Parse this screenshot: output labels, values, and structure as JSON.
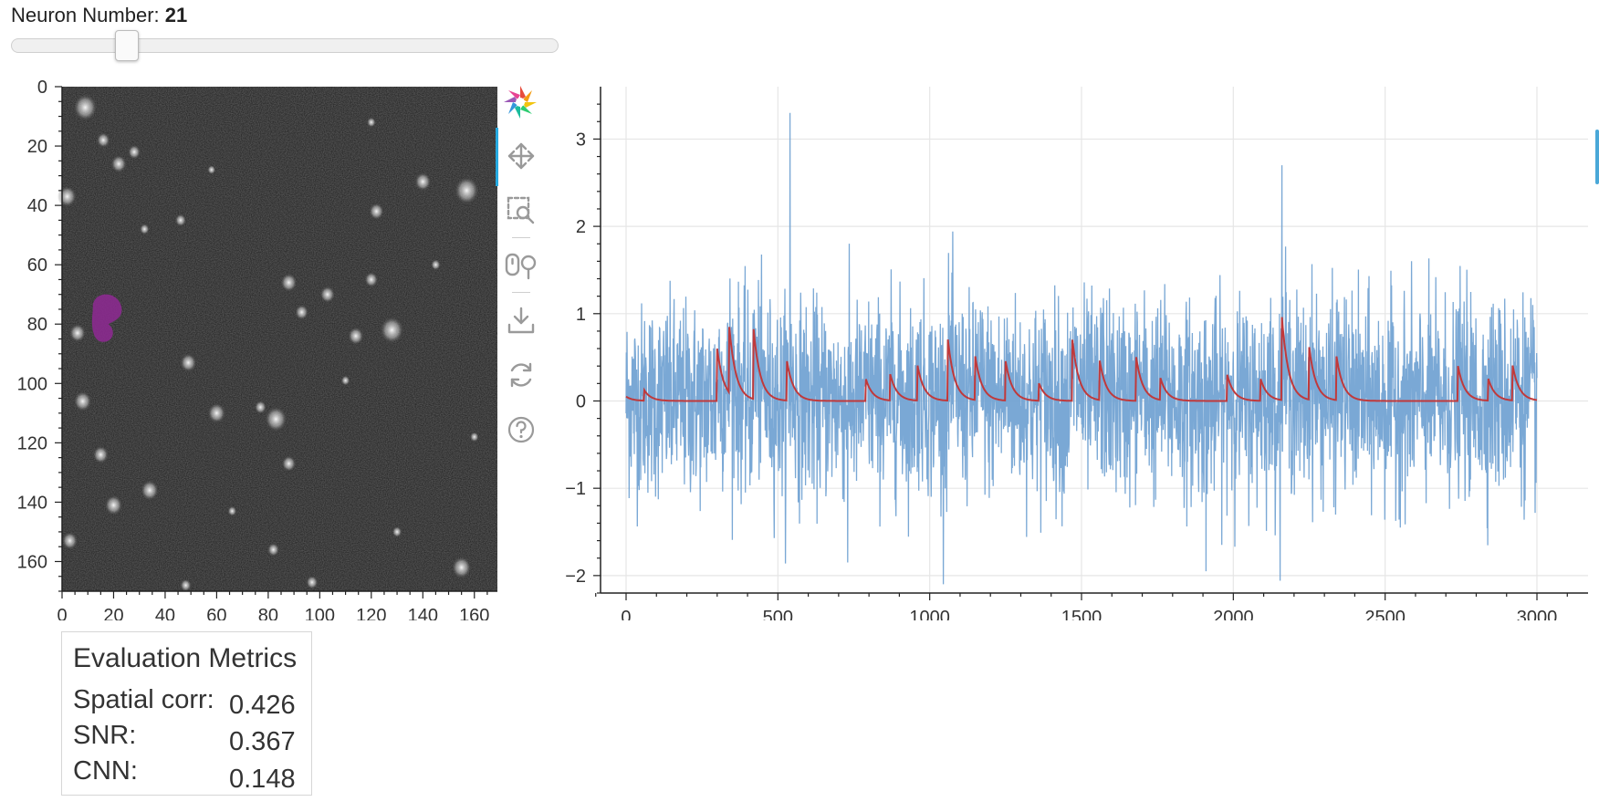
{
  "slider": {
    "label": "Neuron Number:",
    "value": "21",
    "min": 0,
    "max": 100,
    "position_fraction": 0.21
  },
  "image_panel": {
    "x_ticks": [
      "0",
      "20",
      "40",
      "60",
      "80",
      "100",
      "120",
      "140",
      "160"
    ],
    "y_ticks": [
      "0",
      "20",
      "40",
      "60",
      "80",
      "100",
      "120",
      "140",
      "160"
    ],
    "x_range": [
      0,
      170
    ],
    "y_range": [
      0,
      170
    ],
    "highlight_color": "#8b2a8f",
    "highlight_center": [
      17,
      78
    ]
  },
  "toolbar": {
    "items": [
      {
        "name": "bokeh-logo-icon",
        "title": ""
      },
      {
        "name": "pan-icon",
        "title": ""
      },
      {
        "name": "box-zoom-icon",
        "title": ""
      },
      {
        "name": "wheel-zoom-icon",
        "title": ""
      },
      {
        "name": "save-icon",
        "title": ""
      },
      {
        "name": "reset-icon",
        "title": ""
      },
      {
        "name": "help-icon",
        "title": ""
      }
    ],
    "accent": "#26aae1"
  },
  "chart_data": {
    "type": "line",
    "x_range": [
      0,
      3000
    ],
    "ylim": [
      -2.2,
      3.6
    ],
    "x_ticks": [
      "0",
      "500",
      "1000",
      "1500",
      "2000",
      "2500",
      "3000"
    ],
    "y_ticks": [
      "−2",
      "−1",
      "0",
      "1",
      "2",
      "3"
    ],
    "grid": true,
    "title": "",
    "xlabel": "",
    "ylabel": "",
    "series": [
      {
        "color": "#6c9fd0",
        "kind": "noisy-trace",
        "approx_mean": 0.0,
        "approx_amplitude": 1.0,
        "peak": 3.3,
        "trough": -1.95
      },
      {
        "color": "#c0393b",
        "kind": "denoised-trace",
        "events": [
          [
            0,
            0.05
          ],
          [
            60,
            0.12
          ],
          [
            300,
            0.6
          ],
          [
            340,
            0.75
          ],
          [
            420,
            0.8
          ],
          [
            530,
            0.45
          ],
          [
            790,
            0.25
          ],
          [
            870,
            0.3
          ],
          [
            960,
            0.4
          ],
          [
            1060,
            0.7
          ],
          [
            1150,
            0.5
          ],
          [
            1250,
            0.45
          ],
          [
            1360,
            0.2
          ],
          [
            1470,
            0.7
          ],
          [
            1560,
            0.45
          ],
          [
            1680,
            0.5
          ],
          [
            1760,
            0.25
          ],
          [
            1980,
            0.3
          ],
          [
            2090,
            0.25
          ],
          [
            2160,
            0.95
          ],
          [
            2250,
            0.6
          ],
          [
            2340,
            0.5
          ],
          [
            2740,
            0.4
          ],
          [
            2840,
            0.25
          ],
          [
            2920,
            0.4
          ]
        ]
      }
    ]
  },
  "metrics": {
    "title": "Evaluation Metrics",
    "rows": [
      {
        "label": "Spatial corr:",
        "value": "0.426"
      },
      {
        "label": "SNR:",
        "value": "0.367"
      },
      {
        "label": "CNN:",
        "value": "0.148"
      }
    ]
  }
}
